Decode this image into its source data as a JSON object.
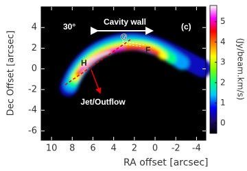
{
  "chart_data": {
    "type": "map",
    "xlabel": "RA offset [arcsec]",
    "ylabel": "Dec Offset [arcsec]",
    "xlim": [
      11,
      -4.9
    ],
    "xticks": [
      10,
      8,
      6,
      4,
      2,
      0,
      -2,
      -4
    ],
    "ylim": [
      -6.9,
      6
    ],
    "yticks": [
      4,
      2,
      0,
      -2,
      -4,
      -6
    ],
    "colorbar_label": "(Jy/beam.km/s)",
    "clim": [
      -0.5,
      5.8
    ],
    "cticks": [
      0,
      1,
      2,
      3,
      4,
      5
    ],
    "colormap": [
      "#000000",
      "#1a0a6e",
      "#0000ff",
      "#00c8ff",
      "#00ff80",
      "#80ff00",
      "#ffff00",
      "#ff8000",
      "#ff0000",
      "#ff00ff",
      "#ffffff"
    ],
    "background": "#000000",
    "annotations": {
      "panel": "(c)",
      "angle": "30°",
      "cavity": "Cavity wall",
      "G": "G",
      "F": "F",
      "H": "H",
      "jet": "Jet/Outflow"
    }
  }
}
